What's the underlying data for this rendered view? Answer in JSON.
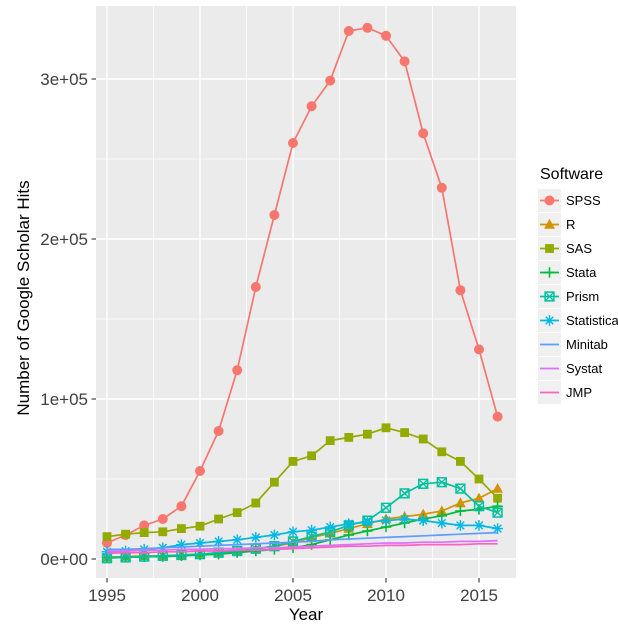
{
  "figure": {
    "y_axis_title": "Number of Google Scholar Hits",
    "x_axis_title": "Year",
    "legend_title": "Software"
  },
  "chart_data": {
    "type": "line",
    "title": "",
    "xlabel": "Year",
    "ylabel": "Number of Google Scholar Hits",
    "legend_title": "Software",
    "legend_position": "right",
    "panel_background": "#EBEBEB",
    "grid": true,
    "xlim": [
      1995,
      2016
    ],
    "ylim": [
      0,
      350000
    ],
    "x_ticks": [
      1995,
      2000,
      2005,
      2010,
      2015
    ],
    "y_ticks": [
      {
        "value": 0,
        "label": "0e+00"
      },
      {
        "value": 100000,
        "label": "1e+05"
      },
      {
        "value": 200000,
        "label": "2e+05"
      },
      {
        "value": 300000,
        "label": "3e+05"
      }
    ],
    "x": [
      1995,
      1996,
      1997,
      1998,
      1999,
      2000,
      2001,
      2002,
      2003,
      2004,
      2005,
      2006,
      2007,
      2008,
      2009,
      2010,
      2011,
      2012,
      2013,
      2014,
      2015,
      2016
    ],
    "series": [
      {
        "name": "SPSS",
        "color": "#F8766D",
        "marker": "circle",
        "values": [
          10000,
          15000,
          21000,
          25000,
          33000,
          55000,
          80000,
          118000,
          170000,
          215000,
          260000,
          283000,
          299000,
          330000,
          332000,
          327000,
          311000,
          266000,
          232000,
          168000,
          131000,
          89000
        ]
      },
      {
        "name": "R",
        "color": "#D39200",
        "marker": "triangle",
        "values": [
          1000,
          1500,
          2000,
          2000,
          2500,
          3000,
          3500,
          4500,
          6000,
          8000,
          10000,
          13500,
          16000,
          19000,
          22000,
          25000,
          26500,
          28000,
          30000,
          35000,
          38000,
          44000
        ]
      },
      {
        "name": "SAS",
        "color": "#93AA00",
        "marker": "square",
        "values": [
          14000,
          15500,
          16500,
          17000,
          19000,
          20500,
          25000,
          29000,
          35000,
          48000,
          61000,
          64500,
          74000,
          76000,
          78000,
          82000,
          79000,
          75000,
          67000,
          61000,
          50000,
          38000
        ]
      },
      {
        "name": "Stata",
        "color": "#00BA38",
        "marker": "plus",
        "values": [
          1000,
          1000,
          1500,
          1500,
          2000,
          2500,
          3000,
          4000,
          5000,
          6000,
          7000,
          9000,
          12000,
          15000,
          17500,
          20000,
          22500,
          25000,
          27000,
          30000,
          31000,
          33000
        ]
      },
      {
        "name": "Prism",
        "color": "#00C19F",
        "marker": "crossed-square",
        "values": [
          500,
          1000,
          1500,
          2000,
          2500,
          3000,
          4000,
          5000,
          6500,
          8000,
          11000,
          14000,
          17000,
          21000,
          24000,
          32000,
          41000,
          47000,
          48000,
          44000,
          33000,
          29000
        ]
      },
      {
        "name": "Statistica",
        "color": "#00B9E3",
        "marker": "asterisk",
        "values": [
          4500,
          5000,
          6000,
          7000,
          9000,
          10000,
          11000,
          12000,
          13500,
          15000,
          17000,
          18000,
          20000,
          22000,
          23000,
          24000,
          25000,
          24000,
          22500,
          21000,
          21000,
          19000
        ]
      },
      {
        "name": "Minitab",
        "color": "#619CFF",
        "marker": "none",
        "values": [
          6000,
          6000,
          6500,
          7000,
          7500,
          8000,
          8500,
          9000,
          9500,
          10000,
          10500,
          11000,
          12000,
          12500,
          13000,
          13500,
          14000,
          14500,
          15000,
          15500,
          16000,
          16500
        ]
      },
      {
        "name": "Systat",
        "color": "#DB72FB",
        "marker": "none",
        "values": [
          5000,
          5000,
          5500,
          5500,
          6000,
          6000,
          6500,
          6500,
          7000,
          7000,
          7500,
          8000,
          8500,
          9000,
          9500,
          10000,
          10000,
          10500,
          10500,
          11000,
          11000,
          11500
        ]
      },
      {
        "name": "JMP",
        "color": "#FF61C3",
        "marker": "none",
        "values": [
          3500,
          4000,
          4000,
          4500,
          4500,
          5000,
          5000,
          5500,
          5500,
          6000,
          6500,
          7000,
          7500,
          8000,
          8000,
          8500,
          8500,
          9000,
          9000,
          9000,
          9500,
          9500
        ]
      }
    ]
  }
}
